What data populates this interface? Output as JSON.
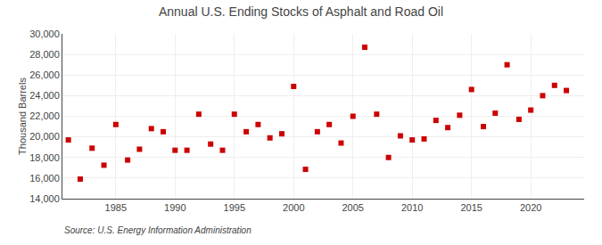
{
  "chart_data": {
    "type": "scatter",
    "title": "Annual U.S. Ending Stocks of Asphalt and Road Oil",
    "ylabel": "Thousand Barrels",
    "annotations": [
      "Source: U.S. Energy Information Administration"
    ],
    "x": [
      1981,
      1982,
      1983,
      1984,
      1985,
      1986,
      1987,
      1988,
      1989,
      1990,
      1991,
      1992,
      1993,
      1994,
      1995,
      1996,
      1997,
      1998,
      1999,
      2000,
      2001,
      2002,
      2003,
      2004,
      2005,
      2006,
      2007,
      2008,
      2009,
      2010,
      2011,
      2012,
      2013,
      2014,
      2015,
      2016,
      2017,
      2018,
      2019,
      2020,
      2021,
      2022,
      2023
    ],
    "values": [
      19700,
      15900,
      18900,
      17250,
      21200,
      17750,
      18800,
      20800,
      20500,
      18700,
      18700,
      22200,
      19300,
      18700,
      22200,
      20500,
      21200,
      19900,
      20300,
      24900,
      16850,
      20500,
      21200,
      19400,
      22000,
      28700,
      22200,
      18000,
      20100,
      19700,
      19800,
      21600,
      20900,
      22100,
      24600,
      21000,
      22300,
      27000,
      21700,
      22600,
      24000,
      25000,
      24500
    ],
    "color": "#cc0000",
    "marker": "square",
    "xlim": [
      1980.5,
      2024.5
    ],
    "xticks": [
      1985,
      1990,
      1995,
      2000,
      2005,
      2010,
      2015,
      2020
    ],
    "ylim": [
      14000,
      30000
    ],
    "yticks": [
      {
        "value": 14000,
        "label": "14,000"
      },
      {
        "value": 16000,
        "label": "16,000"
      },
      {
        "value": 18000,
        "label": "18,000"
      },
      {
        "value": 20000,
        "label": "20,000"
      },
      {
        "value": 22000,
        "label": "22,000"
      },
      {
        "value": 24000,
        "label": "24,000"
      },
      {
        "value": 26000,
        "label": "26,000"
      },
      {
        "value": 28000,
        "label": "28,000"
      },
      {
        "value": 30000,
        "label": "30,000"
      }
    ],
    "grid": true
  }
}
